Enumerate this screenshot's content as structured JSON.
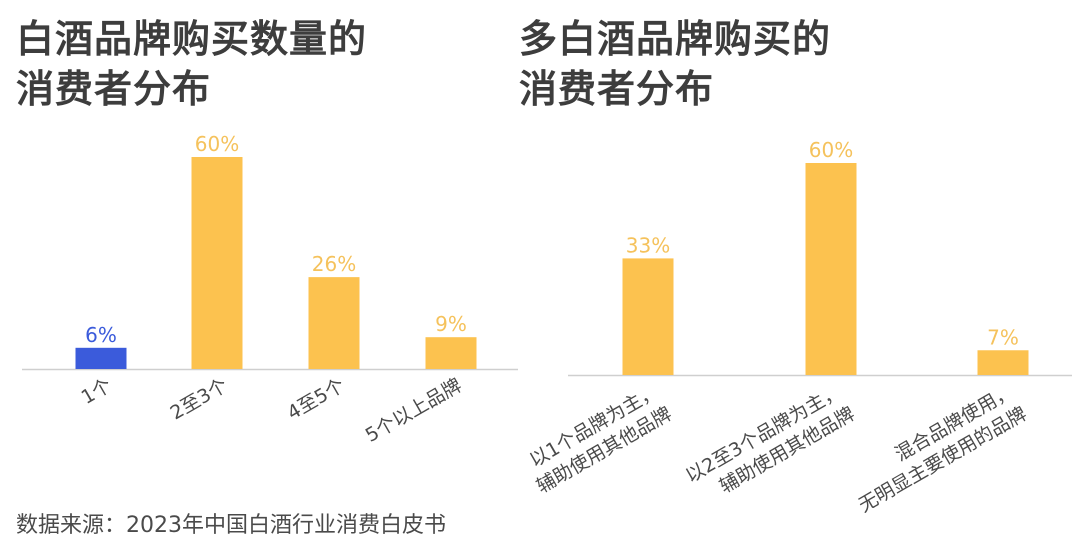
{
  "charts": {
    "left_title": "白酒品牌购买数量的\n消费者分布",
    "right_title": "多白酒品牌购买的\n消费者分布"
  },
  "chart_data": [
    {
      "type": "bar",
      "title": "白酒品牌购买数量的消费者分布",
      "categories": [
        "1个",
        "2至3个",
        "4至5个",
        "5个以上品牌"
      ],
      "values": [
        6,
        60,
        26,
        9
      ],
      "labels": [
        "6%",
        "60%",
        "26%",
        "9%"
      ],
      "unit": "%",
      "ylim": [
        0,
        60
      ],
      "grid": false,
      "colors": [
        "#3b5bdb",
        "#fcc24f",
        "#fcc24f",
        "#fcc24f"
      ],
      "label_colors": [
        "#3b5bdb",
        "#f5c25c",
        "#f5c25c",
        "#f5c25c"
      ]
    },
    {
      "type": "bar",
      "title": "多白酒品牌购买的消费者分布",
      "categories": [
        "以1个品牌为主，\n辅助使用其他品牌",
        "以2至3个品牌为主，\n辅助使用其他品牌",
        "混合品牌使用，\n无明显主要使用的品牌"
      ],
      "values": [
        33,
        60,
        7
      ],
      "labels": [
        "33%",
        "60%",
        "7%"
      ],
      "unit": "%",
      "ylim": [
        0,
        60
      ],
      "grid": false,
      "colors": [
        "#fcc24f",
        "#fcc24f",
        "#fcc24f"
      ],
      "label_colors": [
        "#f5c25c",
        "#f5c25c",
        "#f5c25c"
      ]
    }
  ],
  "source": "数据来源：2023年中国白酒行业消费白皮书"
}
